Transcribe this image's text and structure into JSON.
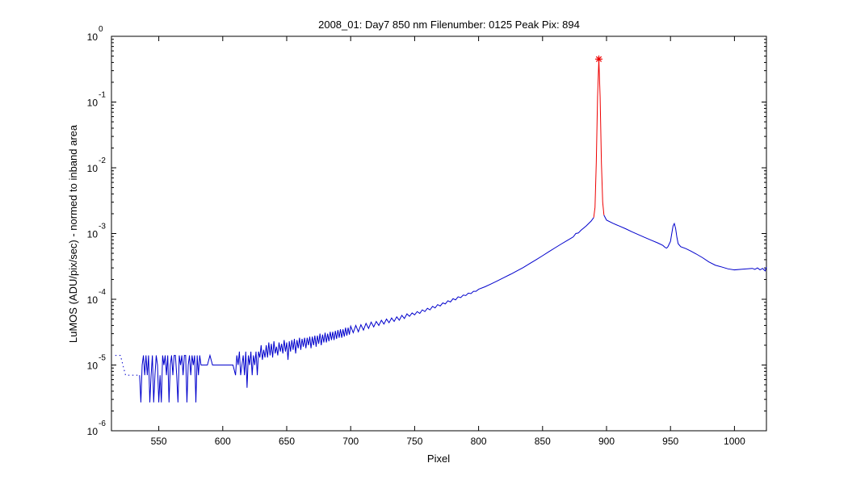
{
  "chart_data": {
    "type": "line",
    "title": "2008_01: Day7  850 nm  Filenumber: 0125 Peak Pix: 894",
    "xlabel": "Pixel",
    "ylabel": "LuMOS (ADU/pix/sec) - normed to inband area",
    "xlim": [
      513,
      1025
    ],
    "ylim": [
      1e-06,
      1
    ],
    "yscale": "log",
    "x_ticks": [
      550,
      600,
      650,
      700,
      750,
      800,
      850,
      900,
      950,
      1000
    ],
    "x_tick_labels": [
      "550",
      "600",
      "650",
      "700",
      "750",
      "800",
      "850",
      "900",
      "950",
      "1000"
    ],
    "y_tick_base": "10",
    "y_tick_exponents": [
      "0",
      "-1",
      "-2",
      "-3",
      "-4",
      "-5",
      "-6"
    ],
    "colors": {
      "outband": "#0000cc",
      "inband": "#ee0000",
      "marker": "#ee0000",
      "axes": "#000000"
    },
    "peak_marker": {
      "x": 894,
      "y": 0.45,
      "symbol": "*"
    },
    "series": [
      {
        "style": "dotted",
        "color": "#0000cc",
        "points": [
          [
            516,
            1.4e-05
          ],
          [
            518,
            1.4e-05
          ],
          [
            520,
            1.4e-05
          ],
          [
            524,
            7e-06
          ],
          [
            526,
            7e-06
          ],
          [
            528,
            7e-06
          ],
          [
            530,
            7e-06
          ],
          [
            532,
            7e-06
          ],
          [
            534,
            7e-06
          ]
        ]
      },
      {
        "style": "solid",
        "color": "#0000cc",
        "points": [
          [
            535,
            7e-06
          ],
          [
            536,
            2.7e-06
          ],
          [
            537,
            1e-05
          ],
          [
            538,
            1.4e-05
          ],
          [
            539,
            7e-06
          ],
          [
            540,
            1.4e-05
          ],
          [
            541,
            7e-06
          ],
          [
            542,
            1.4e-05
          ],
          [
            543,
            2.7e-06
          ],
          [
            544,
            7e-06
          ],
          [
            545,
            1.4e-05
          ],
          [
            546,
            2.7e-06
          ],
          [
            547,
            7e-06
          ],
          [
            548,
            1.4e-05
          ],
          [
            549,
            1e-05
          ],
          [
            550,
            2.7e-06
          ],
          [
            551,
            7e-06
          ],
          [
            552,
            2.7e-06
          ],
          [
            553,
            1.4e-05
          ],
          [
            554,
            1e-05
          ],
          [
            555,
            1.4e-05
          ],
          [
            556,
            7e-06
          ],
          [
            557,
            1.4e-05
          ],
          [
            558,
            2.7e-06
          ],
          [
            559,
            1e-05
          ],
          [
            560,
            1.4e-05
          ],
          [
            561,
            7e-06
          ],
          [
            562,
            1.4e-05
          ],
          [
            563,
            1.4e-05
          ],
          [
            564,
            7e-06
          ],
          [
            565,
            2.7e-06
          ],
          [
            566,
            1.4e-05
          ],
          [
            567,
            1e-05
          ],
          [
            568,
            1.4e-05
          ],
          [
            569,
            7e-06
          ],
          [
            570,
            1.4e-05
          ],
          [
            571,
            1.4e-05
          ],
          [
            572,
            2.7e-06
          ],
          [
            573,
            1e-05
          ],
          [
            574,
            1.4e-05
          ],
          [
            575,
            7e-06
          ],
          [
            576,
            1.4e-05
          ],
          [
            577,
            1e-05
          ],
          [
            578,
            1.4e-05
          ],
          [
            579,
            2.7e-06
          ],
          [
            580,
            1.4e-05
          ],
          [
            581,
            7e-06
          ],
          [
            582,
            1.4e-05
          ],
          [
            583,
            1e-05
          ],
          [
            585,
            1e-05
          ],
          [
            588,
            1e-05
          ],
          [
            590,
            1.4e-05
          ],
          [
            592,
            1e-05
          ],
          [
            595,
            1e-05
          ],
          [
            598,
            1e-05
          ],
          [
            600,
            1e-05
          ],
          [
            602,
            1e-05
          ],
          [
            605,
            1e-05
          ],
          [
            608,
            1e-05
          ],
          [
            610,
            7e-06
          ],
          [
            611,
            1.4e-05
          ],
          [
            612,
            1e-05
          ],
          [
            613,
            1.6e-05
          ],
          [
            614,
            7e-06
          ],
          [
            615,
            1e-05
          ],
          [
            616,
            1.4e-05
          ],
          [
            617,
            7e-06
          ],
          [
            618,
            1.6e-05
          ],
          [
            619,
            4.5e-06
          ],
          [
            620,
            1.4e-05
          ],
          [
            621,
            1e-05
          ],
          [
            622,
            1.6e-05
          ],
          [
            623,
            7e-06
          ],
          [
            624,
            1.4e-05
          ],
          [
            625,
            1e-05
          ],
          [
            626,
            1.6e-05
          ],
          [
            627,
            7e-06
          ],
          [
            628,
            1.6e-05
          ],
          [
            629,
            1.3e-05
          ],
          [
            630,
            2e-05
          ],
          [
            631,
            1.2e-05
          ],
          [
            632,
            1.7e-05
          ],
          [
            633,
            1.3e-05
          ],
          [
            634,
            2e-05
          ],
          [
            635,
            1.3e-05
          ],
          [
            636,
            2.2e-05
          ],
          [
            637,
            1.4e-05
          ],
          [
            638,
            2.1e-05
          ],
          [
            639,
            1.3e-05
          ],
          [
            640,
            2.3e-05
          ],
          [
            641,
            1.5e-05
          ],
          [
            642,
            1.9e-05
          ],
          [
            643,
            1.4e-05
          ],
          [
            644,
            2.2e-05
          ],
          [
            645,
            1.6e-05
          ],
          [
            646,
            2.1e-05
          ],
          [
            647,
            1.5e-05
          ],
          [
            648,
            2.4e-05
          ],
          [
            649,
            1.6e-05
          ],
          [
            650,
            2.2e-05
          ],
          [
            651,
            1.2e-05
          ],
          [
            652,
            2.3e-05
          ],
          [
            653,
            1.6e-05
          ],
          [
            654,
            2.4e-05
          ],
          [
            655,
            1.7e-05
          ],
          [
            656,
            2.5e-05
          ],
          [
            657,
            1.5e-05
          ],
          [
            658,
            2.4e-05
          ],
          [
            659,
            1.8e-05
          ],
          [
            660,
            2.6e-05
          ],
          [
            661,
            1.7e-05
          ],
          [
            662,
            2.5e-05
          ],
          [
            663,
            1.9e-05
          ],
          [
            664,
            2.6e-05
          ],
          [
            665,
            1.8e-05
          ],
          [
            666,
            2.6e-05
          ],
          [
            667,
            2e-05
          ],
          [
            668,
            2.7e-05
          ],
          [
            669,
            1.8e-05
          ],
          [
            670,
            2.7e-05
          ],
          [
            671,
            2e-05
          ],
          [
            672,
            2.8e-05
          ],
          [
            673,
            1.9e-05
          ],
          [
            674,
            2.8e-05
          ],
          [
            675,
            2.1e-05
          ],
          [
            676,
            3e-05
          ],
          [
            677,
            2e-05
          ],
          [
            678,
            2.9e-05
          ],
          [
            679,
            2.2e-05
          ],
          [
            680,
            3.1e-05
          ],
          [
            681,
            2.2e-05
          ],
          [
            682,
            3e-05
          ],
          [
            683,
            2.3e-05
          ],
          [
            684,
            3.2e-05
          ],
          [
            685,
            2.4e-05
          ],
          [
            686,
            3.2e-05
          ],
          [
            687,
            2.4e-05
          ],
          [
            688,
            3.3e-05
          ],
          [
            689,
            2.5e-05
          ],
          [
            690,
            3.4e-05
          ],
          [
            691,
            2.6e-05
          ],
          [
            692,
            3.5e-05
          ],
          [
            693,
            2.6e-05
          ],
          [
            694,
            3.5e-05
          ],
          [
            695,
            2.7e-05
          ],
          [
            696,
            3.7e-05
          ],
          [
            697,
            2.8e-05
          ],
          [
            698,
            3.7e-05
          ],
          [
            699,
            2.9e-05
          ],
          [
            700,
            3.9e-05
          ],
          [
            702,
            3.1e-05
          ],
          [
            704,
            4e-05
          ],
          [
            706,
            3.2e-05
          ],
          [
            708,
            4.1e-05
          ],
          [
            710,
            3.4e-05
          ],
          [
            712,
            4.3e-05
          ],
          [
            714,
            3.6e-05
          ],
          [
            716,
            4.5e-05
          ],
          [
            718,
            3.8e-05
          ],
          [
            720,
            4.6e-05
          ],
          [
            722,
            4e-05
          ],
          [
            724,
            4.8e-05
          ],
          [
            726,
            4.2e-05
          ],
          [
            728,
            5e-05
          ],
          [
            730,
            4.4e-05
          ],
          [
            732,
            5.2e-05
          ],
          [
            734,
            4.6e-05
          ],
          [
            736,
            5.4e-05
          ],
          [
            738,
            4.8e-05
          ],
          [
            740,
            5.7e-05
          ],
          [
            742,
            5.1e-05
          ],
          [
            744,
            6e-05
          ],
          [
            746,
            5.5e-05
          ],
          [
            748,
            6.2e-05
          ],
          [
            750,
            5.8e-05
          ],
          [
            752,
            6.5e-05
          ],
          [
            754,
            6.1e-05
          ],
          [
            756,
            6.9e-05
          ],
          [
            758,
            6.5e-05
          ],
          [
            760,
            7.3e-05
          ],
          [
            762,
            6.9e-05
          ],
          [
            764,
            7.8e-05
          ],
          [
            766,
            7.4e-05
          ],
          [
            768,
            8.3e-05
          ],
          [
            770,
            7.9e-05
          ],
          [
            772,
            8.8e-05
          ],
          [
            774,
            8.5e-05
          ],
          [
            776,
            9.5e-05
          ],
          [
            778,
            9.1e-05
          ],
          [
            780,
            0.000102
          ],
          [
            782,
            9.8e-05
          ],
          [
            784,
            0.000109
          ],
          [
            786,
            0.000106
          ],
          [
            788,
            0.000116
          ],
          [
            790,
            0.000114
          ],
          [
            792,
            0.000124
          ],
          [
            794,
            0.000122
          ],
          [
            796,
            0.000132
          ],
          [
            798,
            0.000132
          ],
          [
            800,
            0.000142
          ],
          [
            805,
            0.000155
          ],
          [
            810,
            0.000172
          ],
          [
            815,
            0.000192
          ],
          [
            820,
            0.000215
          ],
          [
            825,
            0.00024
          ],
          [
            830,
            0.00027
          ],
          [
            835,
            0.000305
          ],
          [
            840,
            0.00035
          ],
          [
            845,
            0.0004
          ],
          [
            850,
            0.00046
          ],
          [
            855,
            0.00053
          ],
          [
            860,
            0.00061
          ],
          [
            865,
            0.0007
          ],
          [
            870,
            0.0008
          ],
          [
            874,
            0.00089
          ],
          [
            876,
            0.001
          ],
          [
            878,
            0.00102
          ],
          [
            880,
            0.00112
          ],
          [
            884,
            0.0013
          ],
          [
            888,
            0.00155
          ],
          [
            890,
            0.00175
          ]
        ]
      },
      {
        "style": "solid",
        "color": "#ee0000",
        "points": [
          [
            890,
            0.00175
          ],
          [
            891,
            0.0025
          ],
          [
            892,
            0.012
          ],
          [
            893,
            0.12
          ],
          [
            894,
            0.45
          ],
          [
            895,
            0.12
          ],
          [
            896,
            0.012
          ],
          [
            897,
            0.003
          ],
          [
            898,
            0.0019
          ]
        ]
      },
      {
        "style": "solid",
        "color": "#0000cc",
        "points": [
          [
            898,
            0.0019
          ],
          [
            900,
            0.0016
          ],
          [
            905,
            0.00143
          ],
          [
            910,
            0.0013
          ],
          [
            915,
            0.00118
          ],
          [
            920,
            0.00106
          ],
          [
            925,
            0.00096
          ],
          [
            930,
            0.00087
          ],
          [
            935,
            0.00079
          ],
          [
            940,
            0.00072
          ],
          [
            944,
            0.00066
          ],
          [
            946,
            0.00061
          ],
          [
            947,
            0.0006
          ],
          [
            948,
            0.00063
          ],
          [
            950,
            0.00076
          ],
          [
            951,
            0.001
          ],
          [
            952,
            0.0013
          ],
          [
            953,
            0.00142
          ],
          [
            954,
            0.0012
          ],
          [
            955,
            0.00088
          ],
          [
            956,
            0.0007
          ],
          [
            958,
            0.00063
          ],
          [
            962,
            0.00059
          ],
          [
            966,
            0.00054
          ],
          [
            970,
            0.00049
          ],
          [
            975,
            0.00043
          ],
          [
            980,
            0.00037
          ],
          [
            985,
            0.00033
          ],
          [
            990,
            0.00031
          ],
          [
            995,
            0.00029
          ],
          [
            1000,
            0.00028
          ],
          [
            1005,
            0.000285
          ],
          [
            1010,
            0.00029
          ],
          [
            1014,
            0.000295
          ],
          [
            1016,
            0.000285
          ],
          [
            1018,
            0.0003
          ],
          [
            1020,
            0.00028
          ],
          [
            1022,
            0.000295
          ],
          [
            1024,
            0.00027
          ],
          [
            1025,
            0.00031
          ]
        ]
      }
    ]
  }
}
